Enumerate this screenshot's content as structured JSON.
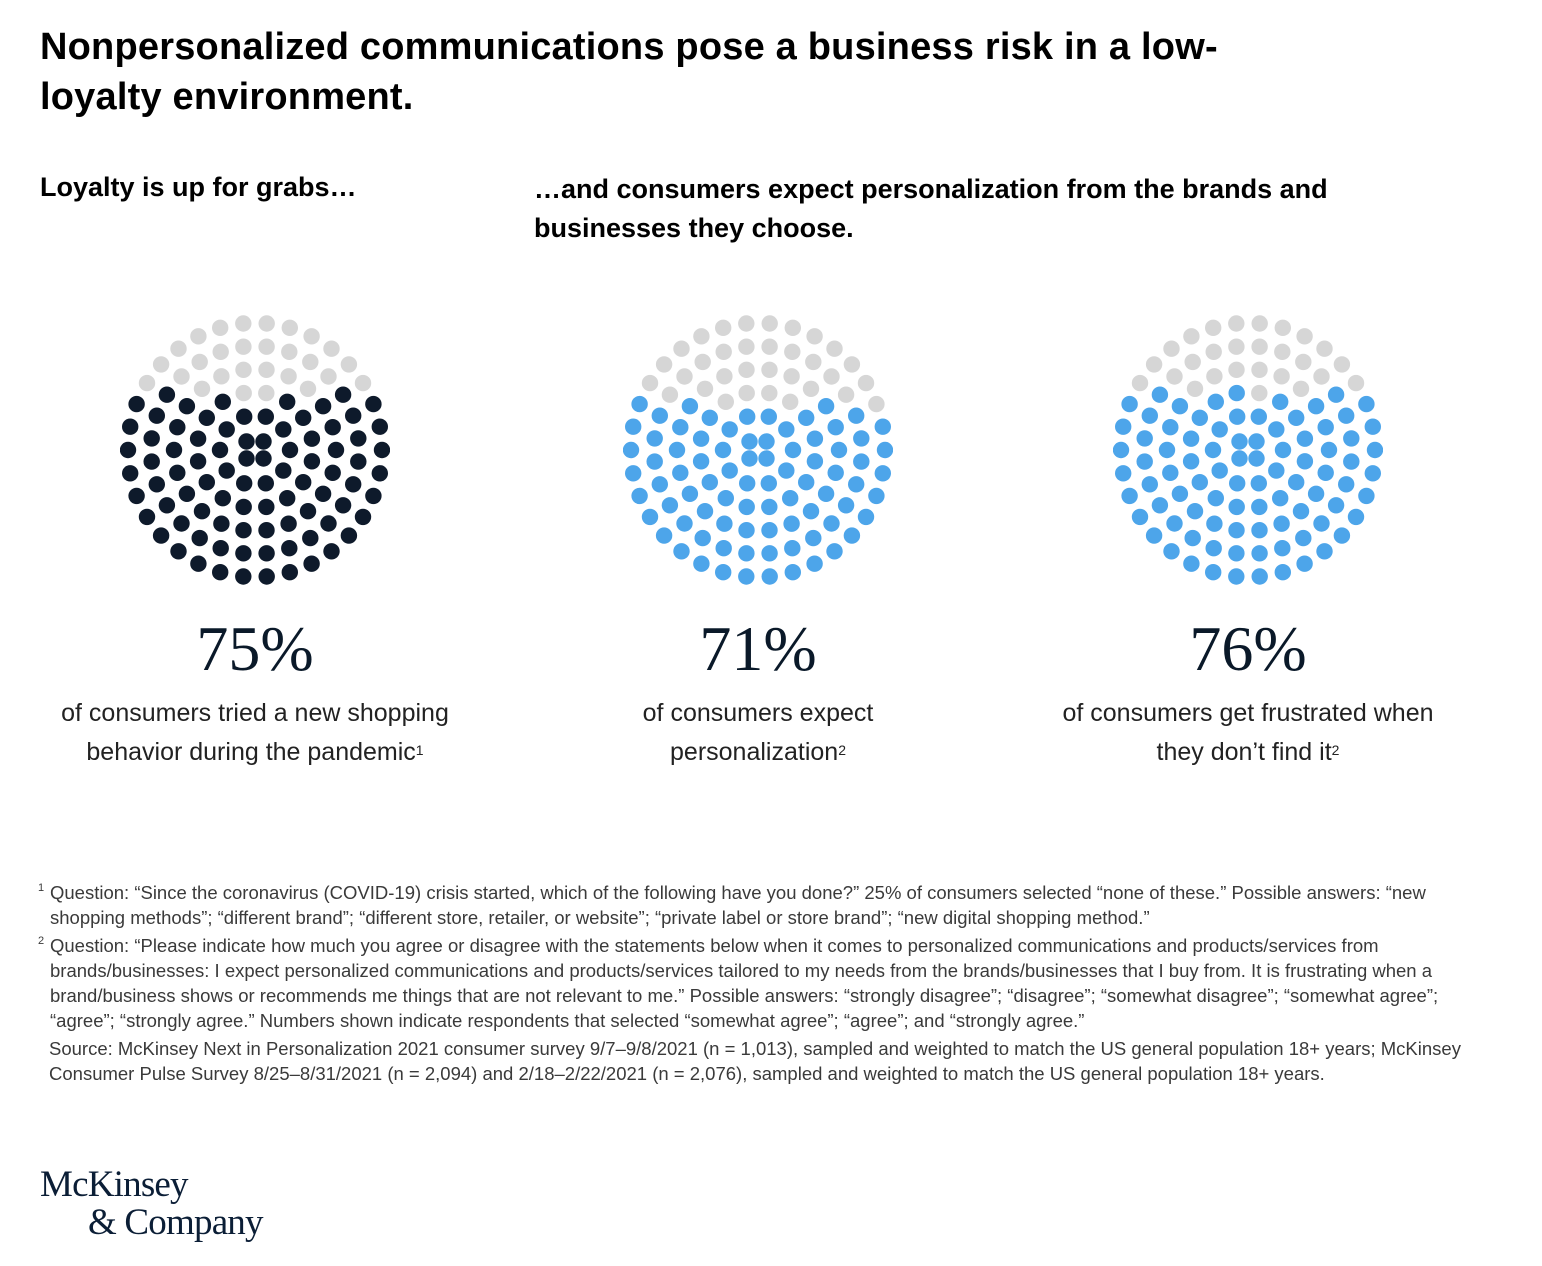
{
  "title": "Nonpersonalized communications pose a business risk in a low-loyalty environment.",
  "subtitle_left": "Loyalty is up for grabs…",
  "subtitle_right": "…and consumers expect personalization from the brands and businesses they choose.",
  "colors": {
    "dark": "#0e1a2b",
    "blue": "#4da5ea",
    "gray": "#d6d6d6"
  },
  "chart_data": [
    {
      "type": "pie",
      "style": "dot-circle",
      "value": 75,
      "label": "75%",
      "description": "of consumers tried a new shopping behavior during the pandemic",
      "footnote": "1",
      "fill_color": "#0e1a2b",
      "empty_color": "#d6d6d6"
    },
    {
      "type": "pie",
      "style": "dot-circle",
      "value": 71,
      "label": "71%",
      "description": "of consumers expect personalization",
      "footnote": "2",
      "fill_color": "#4da5ea",
      "empty_color": "#d6d6d6"
    },
    {
      "type": "pie",
      "style": "dot-circle",
      "value": 76,
      "label": "76%",
      "description": "of consumers get frustrated when they don’t find it",
      "footnote": "2",
      "fill_color": "#4da5ea",
      "empty_color": "#d6d6d6"
    }
  ],
  "footnotes": [
    {
      "mark": "1",
      "text": "Question: “Since the coronavirus (COVID-19) crisis started, which of the following have you done?” 25% of consumers selected “none of these.” Possible answers: “new shopping methods”; “different brand”; “different store, retailer, or website”; “private label or store brand”; “new digital shopping method.”"
    },
    {
      "mark": "2",
      "text": "Question: “Please indicate how much you agree or disagree with the statements below when it comes to personalized communications and products/services from brands/businesses: I expect personalized communications and products/services tailored to my needs from the brands/businesses that I buy from. It is frustrating when a brand/business shows or recommends me things that are not relevant to me.” Possible answers: “strongly disagree”; “disagree”; “somewhat disagree”; “somewhat agree”; “agree”; “strongly agree.” Numbers shown indicate respondents that selected “somewhat agree”; “agree”; and “strongly agree.”"
    }
  ],
  "source": "Source: McKinsey Next in Personalization 2021 consumer survey 9/7–9/8/2021 (n = 1,013), sampled and weighted to match the US general population 18+ years; McKinsey Consumer Pulse Survey 8/25–8/31/2021 (n = 2,094) and 2/18–2/22/2021 (n = 2,076), sampled and weighted to match the US general population 18+ years.",
  "logo": {
    "line1": "McKinsey",
    "line2": "& Company"
  }
}
